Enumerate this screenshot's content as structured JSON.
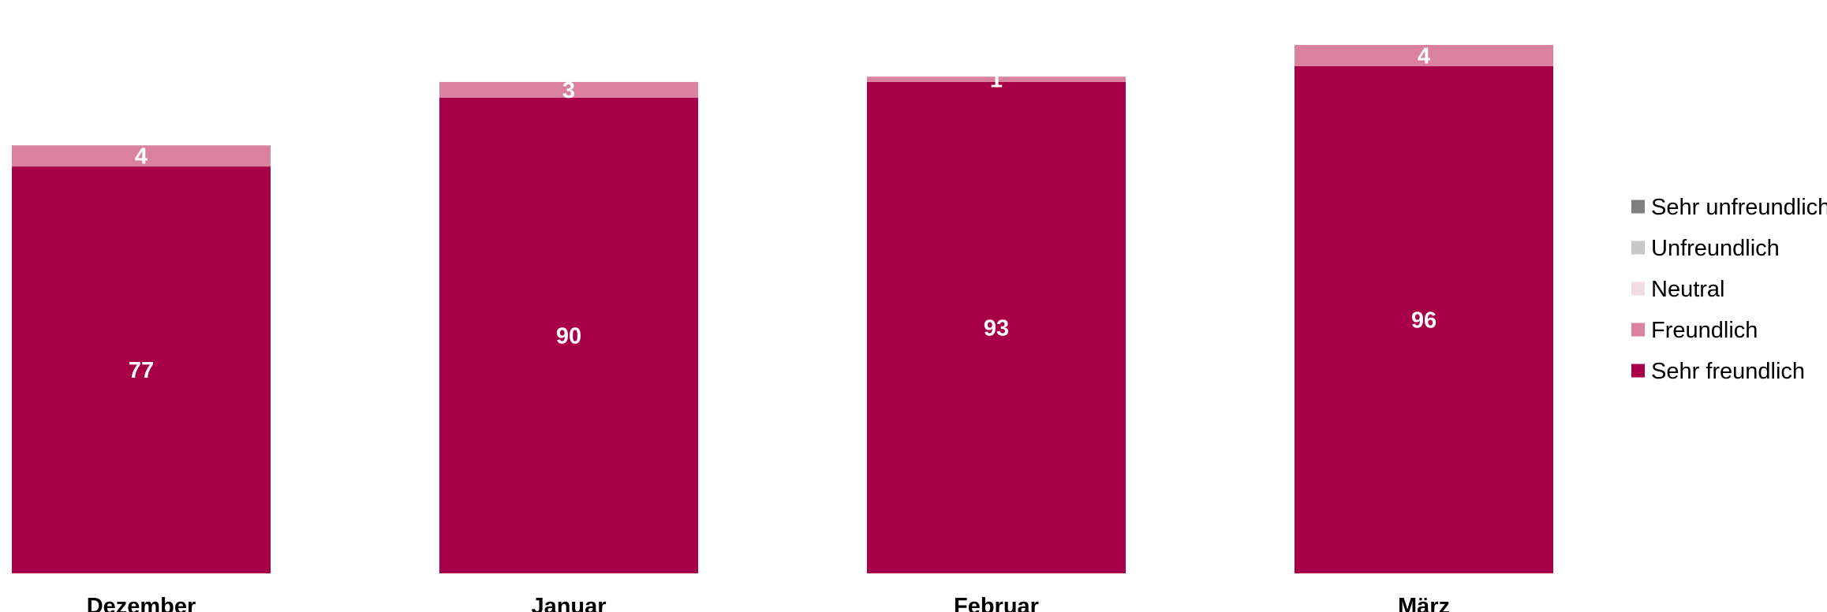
{
  "chart_data": {
    "type": "bar",
    "stacked": true,
    "categories": [
      "Dezember",
      "Januar",
      "Februar",
      "März"
    ],
    "series": [
      {
        "name": "Sehr freundlich",
        "values": [
          77,
          90,
          93,
          96
        ],
        "color": "#A80048"
      },
      {
        "name": "Freundlich",
        "values": [
          4,
          3,
          1,
          4
        ],
        "color": "#D9819F"
      },
      {
        "name": "Neutral",
        "values": [
          0,
          0,
          0,
          0
        ],
        "color": "#F2DCE4"
      },
      {
        "name": "Unfreundlich",
        "values": [
          0,
          0,
          0,
          0
        ],
        "color": "#C8C8C8"
      },
      {
        "name": "Sehr unfreundlich",
        "values": [
          0,
          0,
          0,
          0
        ],
        "color": "#808080"
      }
    ],
    "legend_order": [
      "Sehr unfreundlich",
      "Unfreundlich",
      "Neutral",
      "Freundlich",
      "Sehr freundlich"
    ],
    "legend_position": "right",
    "grid": false,
    "axes_visible": false,
    "ylim": [
      0,
      100
    ]
  }
}
